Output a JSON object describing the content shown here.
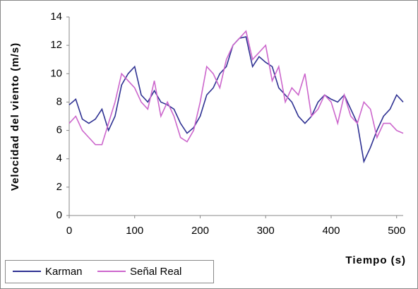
{
  "chart_data": {
    "type": "line",
    "x_label": "Tiempo (s)",
    "y_label": "Velocidad del viento (m/s)",
    "x": [
      0,
      10,
      20,
      30,
      40,
      50,
      60,
      70,
      80,
      90,
      100,
      110,
      120,
      130,
      140,
      150,
      160,
      170,
      180,
      190,
      200,
      210,
      220,
      230,
      240,
      250,
      260,
      270,
      280,
      290,
      300,
      310,
      320,
      330,
      340,
      350,
      360,
      370,
      380,
      390,
      400,
      410,
      420,
      430,
      440,
      450,
      460,
      470,
      480,
      490,
      500,
      510
    ],
    "series": [
      {
        "name": "Karman",
        "color": "#2e3192",
        "values": [
          7.8,
          8.2,
          6.8,
          6.5,
          6.8,
          7.5,
          6.0,
          7.0,
          9.2,
          10.0,
          10.5,
          8.5,
          8.0,
          8.8,
          8.0,
          7.8,
          7.5,
          6.5,
          5.8,
          6.2,
          7.0,
          8.5,
          9.0,
          10.0,
          10.5,
          12.0,
          12.5,
          12.6,
          10.5,
          11.2,
          10.8,
          10.5,
          9.0,
          8.5,
          8.0,
          7.0,
          6.5,
          7.0,
          8.0,
          8.5,
          8.2,
          8.0,
          8.5,
          7.5,
          6.5,
          3.8,
          4.8,
          6.0,
          7.0,
          7.5,
          8.5,
          8.0
        ]
      },
      {
        "name": "Señal Real",
        "color": "#cc66cc",
        "values": [
          6.5,
          7.0,
          6.0,
          5.5,
          5.0,
          5.0,
          6.5,
          8.0,
          10.0,
          9.5,
          9.0,
          8.0,
          7.5,
          9.5,
          7.0,
          8.0,
          7.0,
          5.5,
          5.2,
          6.0,
          8.0,
          10.5,
          10.0,
          9.0,
          11.0,
          12.0,
          12.5,
          13.0,
          11.0,
          11.5,
          12.0,
          9.5,
          10.5,
          8.0,
          9.0,
          8.5,
          10.0,
          7.0,
          7.5,
          8.5,
          8.0,
          6.5,
          8.5,
          7.0,
          6.5,
          8.0,
          7.5,
          5.5,
          6.5,
          6.5,
          6.0,
          5.8
        ]
      }
    ],
    "xlim": [
      0,
      510
    ],
    "xticks": [
      0,
      100,
      200,
      300,
      400,
      500
    ],
    "ylim": [
      0,
      14
    ],
    "yticks": [
      0,
      2,
      4,
      6,
      8,
      10,
      12,
      14
    ],
    "grid": false
  }
}
